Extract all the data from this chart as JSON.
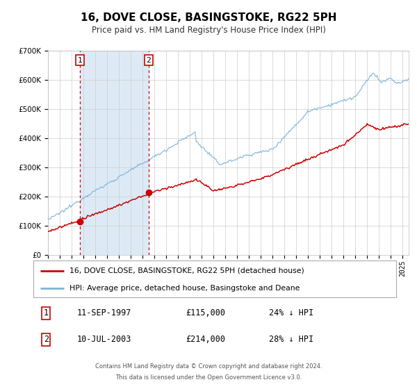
{
  "title": "16, DOVE CLOSE, BASINGSTOKE, RG22 5PH",
  "subtitle": "Price paid vs. HM Land Registry's House Price Index (HPI)",
  "ylim": [
    0,
    700000
  ],
  "yticks": [
    0,
    100000,
    200000,
    300000,
    400000,
    500000,
    600000,
    700000
  ],
  "ytick_labels": [
    "£0",
    "£100K",
    "£200K",
    "£300K",
    "£400K",
    "£500K",
    "£600K",
    "£700K"
  ],
  "xlim_start": 1995.0,
  "xlim_end": 2025.5,
  "sale1_date": 1997.7,
  "sale1_price": 115000,
  "sale1_label": "11-SEP-1997",
  "sale1_price_label": "£115,000",
  "sale1_pct": "24% ↓ HPI",
  "sale2_date": 2003.52,
  "sale2_price": 214000,
  "sale2_label": "10-JUL-2003",
  "sale2_price_label": "£214,000",
  "sale2_pct": "28% ↓ HPI",
  "legend_line1": "16, DOVE CLOSE, BASINGSTOKE, RG22 5PH (detached house)",
  "legend_line2": "HPI: Average price, detached house, Basingstoke and Deane",
  "footer_line1": "Contains HM Land Registry data © Crown copyright and database right 2024.",
  "footer_line2": "This data is licensed under the Open Government Licence v3.0.",
  "hpi_color": "#7eb3d8",
  "sale_color": "#cc0000",
  "shade_color": "#ddeaf6",
  "vline_color": "#cc0000",
  "bg_color": "#ffffff",
  "grid_color": "#cccccc"
}
